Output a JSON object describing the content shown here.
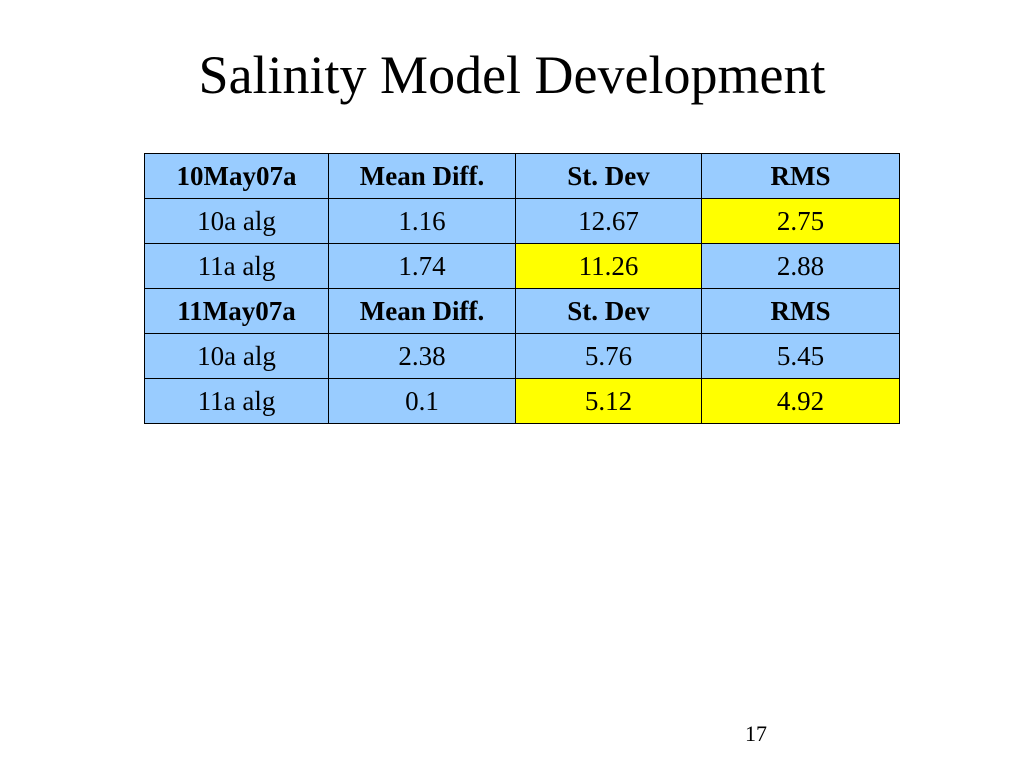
{
  "slide": {
    "title": "Salinity Model Development",
    "page_number": "17"
  },
  "table": {
    "highlight_color": "#ffff00",
    "cell_color": "#99ccff",
    "rows": [
      {
        "type": "header",
        "cells": [
          {
            "text": "10May07a",
            "highlight": false
          },
          {
            "text": "Mean Diff.",
            "highlight": false
          },
          {
            "text": "St. Dev",
            "highlight": false
          },
          {
            "text": "RMS",
            "highlight": false
          }
        ]
      },
      {
        "type": "data",
        "cells": [
          {
            "text": "10a alg",
            "highlight": false
          },
          {
            "text": "1.16",
            "highlight": false
          },
          {
            "text": "12.67",
            "highlight": false
          },
          {
            "text": "2.75",
            "highlight": true
          }
        ]
      },
      {
        "type": "data",
        "cells": [
          {
            "text": "11a alg",
            "highlight": false
          },
          {
            "text": "1.74",
            "highlight": false
          },
          {
            "text": "11.26",
            "highlight": true
          },
          {
            "text": "2.88",
            "highlight": false
          }
        ]
      },
      {
        "type": "header",
        "cells": [
          {
            "text": "11May07a",
            "highlight": false
          },
          {
            "text": "Mean Diff.",
            "highlight": false
          },
          {
            "text": "St. Dev",
            "highlight": false
          },
          {
            "text": "RMS",
            "highlight": false
          }
        ]
      },
      {
        "type": "data",
        "cells": [
          {
            "text": "10a alg",
            "highlight": false
          },
          {
            "text": "2.38",
            "highlight": false
          },
          {
            "text": "5.76",
            "highlight": false
          },
          {
            "text": "5.45",
            "highlight": false
          }
        ]
      },
      {
        "type": "data",
        "cells": [
          {
            "text": "11a alg",
            "highlight": false
          },
          {
            "text": "0.1",
            "highlight": false
          },
          {
            "text": "5.12",
            "highlight": true
          },
          {
            "text": "4.92",
            "highlight": true
          }
        ]
      }
    ]
  }
}
